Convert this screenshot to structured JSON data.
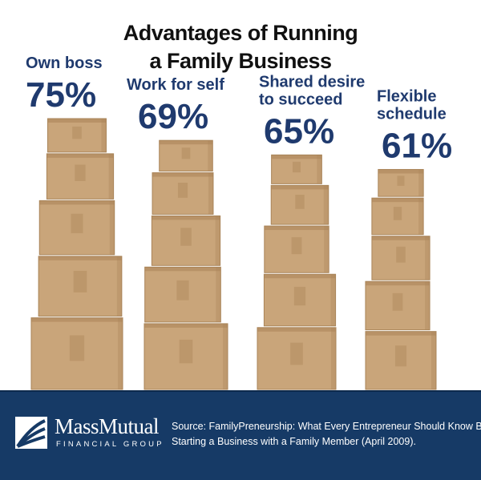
{
  "chart_data": {
    "type": "bar",
    "title_lines": [
      "Advantages of Running",
      "a Family Business"
    ],
    "categories": [
      [
        "Own boss"
      ],
      [
        "Work for self"
      ],
      [
        "Shared desire",
        "to succeed"
      ],
      [
        "Flexible",
        "schedule"
      ]
    ],
    "values": [
      75,
      69,
      65,
      61
    ],
    "value_labels": [
      "75%",
      "69%",
      "65%",
      "61%"
    ],
    "unit": "%"
  },
  "colors": {
    "label_blue": "#1f3a6e",
    "footer_bg": "#163a66",
    "box": "#c9a57a",
    "box_shade": "#a98458",
    "tape": "#b48e60"
  },
  "footer": {
    "brand_name": "MassMutual",
    "brand_sub": "FINANCIAL GROUP",
    "source_lines": [
      "Source: FamilyPreneurship: What Every Entrepreneur Should Know Before",
      "Starting a Business with a Family Member (April 2009)."
    ]
  }
}
